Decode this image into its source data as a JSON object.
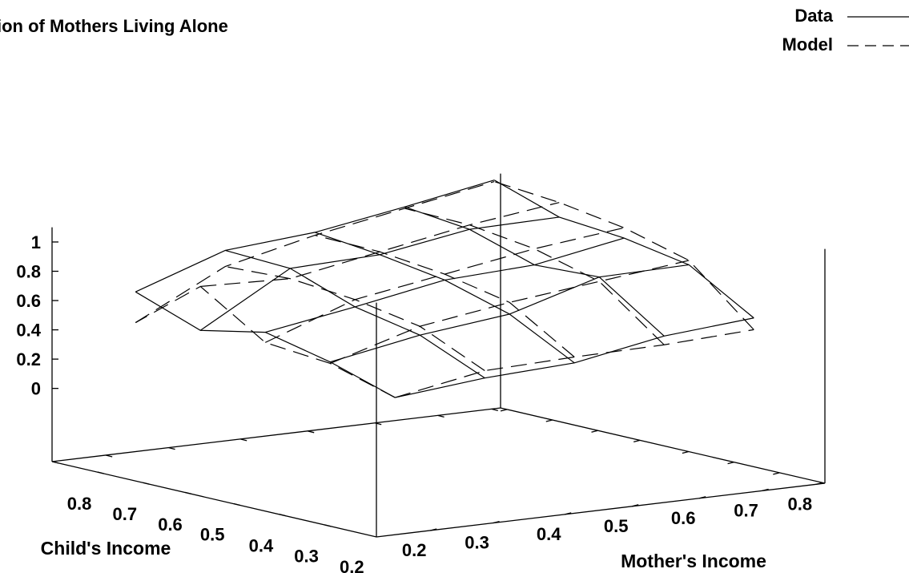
{
  "chart_data": {
    "type": "surface3d",
    "title": "ion of Mothers Living Alone",
    "xlabel": "Mother's Income",
    "ylabel": "Child's Income",
    "zlabel": "",
    "legend_position": "top-right",
    "x_ticks": [
      "0.2",
      "0.3",
      "0.4",
      "0.5",
      "0.6",
      "0.7",
      "0.8"
    ],
    "y_ticks": [
      "0.8",
      "0.7",
      "0.6",
      "0.5",
      "0.4",
      "0.3",
      "0.2"
    ],
    "z_ticks": [
      "0",
      "0.2",
      "0.4",
      "0.6",
      "0.8",
      "1"
    ],
    "x": [
      0.15,
      0.35,
      0.55,
      0.75,
      0.95
    ],
    "y": [
      0.15,
      0.35,
      0.55,
      0.75,
      0.95
    ],
    "zlim": [
      -0.5,
      1
    ],
    "series": [
      {
        "name": "Data",
        "style": "solid",
        "z": [
          [
            0.32,
            0.38,
            0.41,
            0.52,
            0.57
          ],
          [
            0.46,
            0.57,
            0.64,
            0.82,
            0.83
          ],
          [
            0.56,
            0.66,
            0.77,
            0.8,
            0.91
          ],
          [
            0.47,
            0.82,
            0.84,
            0.94,
            0.95
          ],
          [
            0.63,
            0.84,
            0.89,
            0.99,
            1.1
          ]
        ]
      },
      {
        "name": "Model",
        "style": "dashed",
        "z": [
          [
            0.32,
            0.43,
            0.45,
            0.46,
            0.49
          ],
          [
            0.45,
            0.63,
            0.72,
            0.79,
            0.86
          ],
          [
            0.49,
            0.71,
            0.81,
            0.91,
            0.98
          ],
          [
            0.77,
            0.75,
            0.86,
            0.97,
            1.05
          ],
          [
            0.42,
            0.73,
            0.87,
            0.98,
            1.09
          ]
        ]
      }
    ]
  }
}
